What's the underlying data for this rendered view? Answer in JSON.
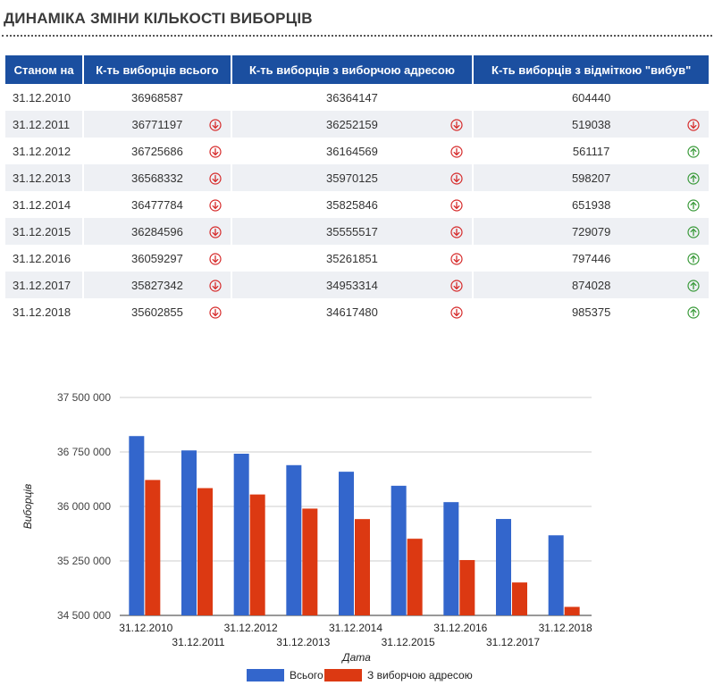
{
  "page": {
    "title": "ДИНАМІКА ЗМІНИ КІЛЬКОСТІ ВИБОРЦІВ"
  },
  "table": {
    "headers": [
      "Станом на",
      "К-ть виборців всього",
      "К-ть виборців з виборчою адресою",
      "К-ть виборців з відміткою \"вибув\""
    ],
    "rows": [
      {
        "date": "31.12.2010",
        "total": "36968587",
        "total_trend": "",
        "with_address": "36364147",
        "address_trend": "",
        "left": "604440",
        "left_trend": ""
      },
      {
        "date": "31.12.2011",
        "total": "36771197",
        "total_trend": "down",
        "with_address": "36252159",
        "address_trend": "down",
        "left": "519038",
        "left_trend": "down"
      },
      {
        "date": "31.12.2012",
        "total": "36725686",
        "total_trend": "down",
        "with_address": "36164569",
        "address_trend": "down",
        "left": "561117",
        "left_trend": "up"
      },
      {
        "date": "31.12.2013",
        "total": "36568332",
        "total_trend": "down",
        "with_address": "35970125",
        "address_trend": "down",
        "left": "598207",
        "left_trend": "up"
      },
      {
        "date": "31.12.2014",
        "total": "36477784",
        "total_trend": "down",
        "with_address": "35825846",
        "address_trend": "down",
        "left": "651938",
        "left_trend": "up"
      },
      {
        "date": "31.12.2015",
        "total": "36284596",
        "total_trend": "down",
        "with_address": "35555517",
        "address_trend": "down",
        "left": "729079",
        "left_trend": "up"
      },
      {
        "date": "31.12.2016",
        "total": "36059297",
        "total_trend": "down",
        "with_address": "35261851",
        "address_trend": "down",
        "left": "797446",
        "left_trend": "up"
      },
      {
        "date": "31.12.2017",
        "total": "35827342",
        "total_trend": "down",
        "with_address": "34953314",
        "address_trend": "down",
        "left": "874028",
        "left_trend": "up"
      },
      {
        "date": "31.12.2018",
        "total": "35602855",
        "total_trend": "down",
        "with_address": "34617480",
        "address_trend": "down",
        "left": "985375",
        "left_trend": "up"
      }
    ]
  },
  "colors": {
    "header_bg": "#1b4fa0",
    "date_link": "#1b4fa0",
    "arrow_down": "#d62b2b",
    "arrow_up": "#3a9a3a",
    "series_total": "#3366cc",
    "series_address": "#dc3912"
  },
  "chart_data": {
    "type": "bar",
    "xlabel": "Дата",
    "ylabel": "Виборців",
    "ylim": [
      34500000,
      37500000
    ],
    "yticks": [
      34500000,
      35250000,
      36000000,
      36750000,
      37500000
    ],
    "ytick_labels": [
      "34 500 000",
      "35 250 000",
      "36 000 000",
      "36 750 000",
      "37 500 000"
    ],
    "grid": true,
    "legend_position": "bottom",
    "categories": [
      "31.12.2010",
      "31.12.2011",
      "31.12.2012",
      "31.12.2013",
      "31.12.2014",
      "31.12.2015",
      "31.12.2016",
      "31.12.2017",
      "31.12.2018"
    ],
    "series": [
      {
        "name": "Всього",
        "color": "#3366cc",
        "values": [
          36968587,
          36771197,
          36725686,
          36568332,
          36477784,
          36284596,
          36059297,
          35827342,
          35602855
        ]
      },
      {
        "name": "З виборчою адресою",
        "color": "#dc3912",
        "values": [
          36364147,
          36252159,
          36164569,
          35970125,
          35825846,
          35555517,
          35261851,
          34953314,
          34617480
        ]
      }
    ]
  }
}
